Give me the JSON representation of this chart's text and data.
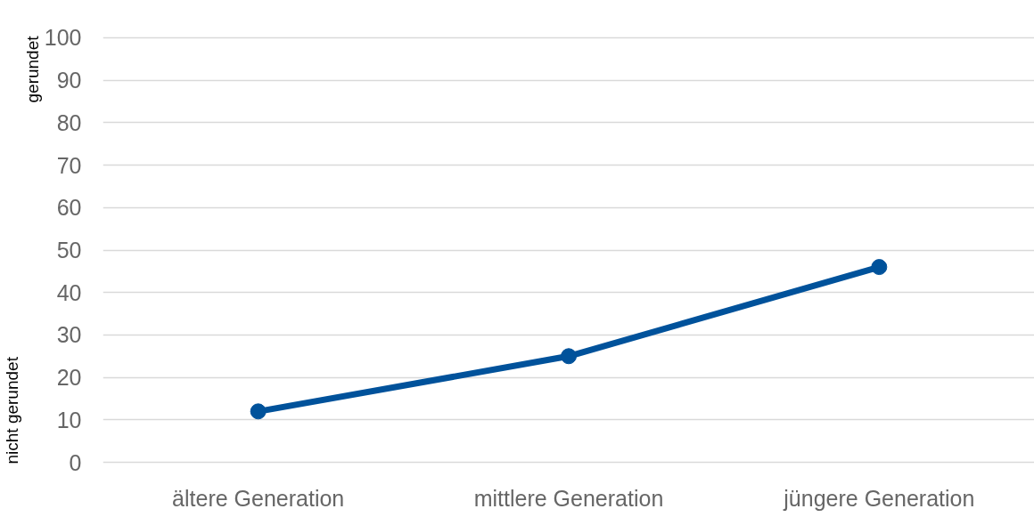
{
  "chart_data": {
    "type": "line",
    "categories": [
      "ältere Generation",
      "mittlere Generation",
      "jüngere Generation"
    ],
    "series": [
      {
        "color": "#00529b",
        "values": [
          12,
          25,
          46
        ]
      }
    ],
    "ylim": [
      0,
      100
    ],
    "yticks": [
      0,
      10,
      20,
      30,
      40,
      50,
      60,
      70,
      80,
      90,
      100
    ],
    "grid": "y",
    "marker": "circle",
    "line_style": "solid",
    "annotations": [
      "gerundet",
      "nicht gerundet"
    ]
  }
}
